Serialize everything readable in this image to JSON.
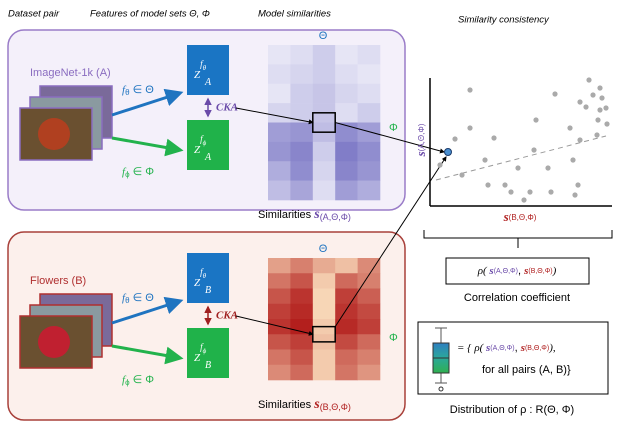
{
  "header": {
    "dataset_pair": "Dataset pair",
    "features": "Features of model sets Θ, Φ",
    "similarities": "Model similarities",
    "consistency": "Similarity consistency"
  },
  "panels": [
    {
      "dataset": "ImageNet-1k (A)",
      "f_theta": {
        "base": "f",
        "sub": "θ",
        "rest": " ∈ Θ"
      },
      "f_phi": {
        "base": "f",
        "sub": "ϕ",
        "rest": " ∈ Φ"
      },
      "z_theta": {
        "base": "Z",
        "sub": "A",
        "sup": "f",
        "supsub": "θ"
      },
      "z_phi": {
        "base": "Z",
        "sub": "A",
        "sup": "f",
        "supsub": "ϕ"
      },
      "cka": "CKA",
      "theta": "Θ",
      "phi": "Φ",
      "caption": {
        "text": "Similarities ",
        "s": "s",
        "sub": "(A,Θ,Φ)"
      }
    },
    {
      "dataset": "Flowers (B)",
      "f_theta": {
        "base": "f",
        "sub": "θ",
        "rest": " ∈ Θ"
      },
      "f_phi": {
        "base": "f",
        "sub": "ϕ",
        "rest": " ∈ Φ"
      },
      "z_theta": {
        "base": "Z",
        "sub": "B",
        "sup": "f",
        "supsub": "θ"
      },
      "z_phi": {
        "base": "Z",
        "sub": "B",
        "sup": "f",
        "supsub": "ϕ"
      },
      "cka": "CKA",
      "theta": "Θ",
      "phi": "Φ",
      "caption": {
        "text": "Similarities ",
        "s": "s",
        "sub": "(B,Θ,Φ)"
      }
    }
  ],
  "scatter": {
    "y_label": {
      "s": "s",
      "sub": "(A,Θ,Φ)"
    },
    "x_label": {
      "s": "s",
      "sub": "(B,Θ,Φ)"
    }
  },
  "correlation": {
    "formula": {
      "open": "ρ( ",
      "sa": "s",
      "suba": "(A,Θ,Φ)",
      "comma": ", ",
      "sb": "s",
      "subb": "(B,Θ,Φ)",
      "close": ")"
    },
    "caption": "Correlation coefficient"
  },
  "distribution": {
    "line1": {
      "open": "= { ρ( ",
      "sa": "s",
      "suba": "(A,Θ,Φ)",
      "comma": ", ",
      "sb": "s",
      "subb": "(B,Θ,Φ)",
      "close": "),"
    },
    "line2": "for all pairs (A, B)}",
    "caption": "Distribution of ρ : R(Θ, Φ)"
  }
}
